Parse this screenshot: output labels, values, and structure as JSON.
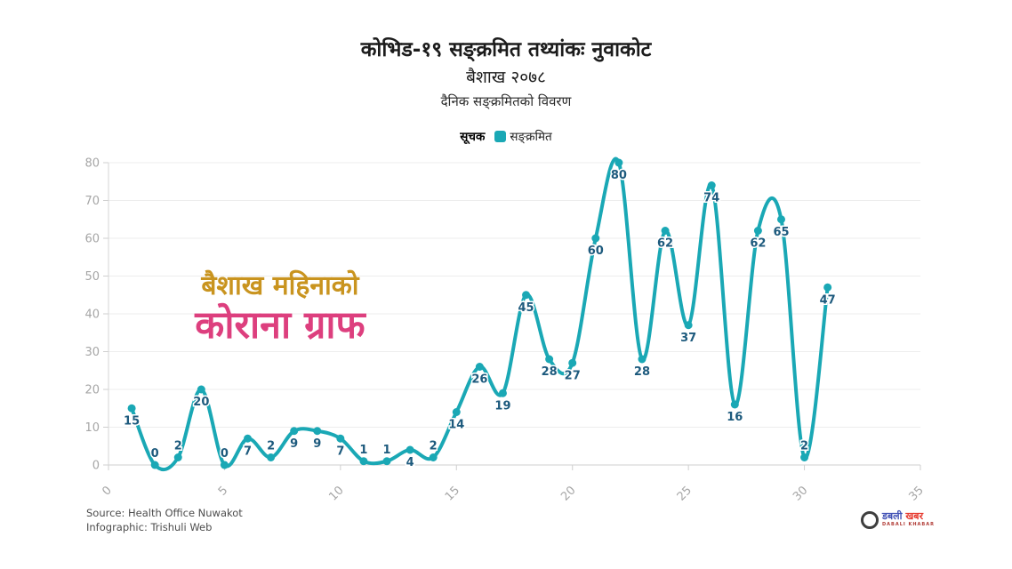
{
  "header": {
    "title": "कोभिड-१९ सङ्क्रमित तथ्यांकः नुवाकोट",
    "subtitle": "बैशाख २०७८",
    "description": "दैनिक सङ्क्रमितको विवरण"
  },
  "legend": {
    "label": "सूचक",
    "series_name": "सङ्क्रमित",
    "swatch_color": "#1aa8b5"
  },
  "chart_data": {
    "type": "line",
    "title": "कोभिड-१९ सङ्क्रमित तथ्यांकः नुवाकोट — दैनिक सङ्क्रमितको विवरण",
    "x": [
      1,
      2,
      3,
      4,
      5,
      6,
      7,
      8,
      9,
      10,
      11,
      12,
      13,
      14,
      15,
      16,
      17,
      18,
      19,
      20,
      21,
      22,
      23,
      24,
      25,
      26,
      27,
      28,
      29,
      30,
      31
    ],
    "series": [
      {
        "name": "सङ्क्रमित",
        "values": [
          15,
          0,
          2,
          20,
          0,
          7,
          2,
          9,
          9,
          7,
          1,
          1,
          4,
          2,
          14,
          26,
          19,
          45,
          28,
          27,
          60,
          80,
          28,
          62,
          37,
          74,
          16,
          62,
          65,
          2,
          47
        ],
        "color": "#1aa8b5"
      }
    ],
    "xlabel": "",
    "ylabel": "",
    "xlim": [
      0,
      35
    ],
    "ylim": [
      0,
      80
    ],
    "x_ticks": [
      0,
      5,
      10,
      15,
      20,
      25,
      30,
      35
    ],
    "y_ticks": [
      0,
      10,
      20,
      30,
      40,
      50,
      60,
      70,
      80
    ],
    "grid": "horizontal",
    "smooth": true,
    "marker": "circle",
    "data_label_color": "#1d5a7d",
    "axis_text_color": "#a6a6a6",
    "grid_color": "#ededed",
    "axis_line_color": "#d6d6d6",
    "legend_position": "top-center"
  },
  "watermark": {
    "line1": "बैशाख महिनाको",
    "line1_color": "#c9941f",
    "line2": "कोराना ग्राफ",
    "line2_color": "#dd3f7e"
  },
  "footer": {
    "source": "Source: Health Office Nuwakot",
    "infographic": "Infographic: Trishuli Web"
  },
  "logo": {
    "name_part1": "डबली",
    "name_part1_color": "#4050b5",
    "name_part2": " खबर",
    "name_part2_color": "#e6392e",
    "subtext": "DABALI KHABAR"
  }
}
